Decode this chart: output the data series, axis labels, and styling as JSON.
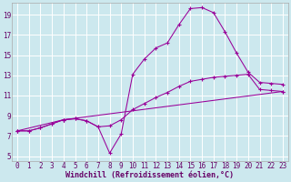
{
  "background_color": "#cce8ee",
  "grid_color": "#ffffff",
  "line_color": "#990099",
  "xlabel": "Windchill (Refroidissement éolien,°C)",
  "xlabel_fontsize": 6.0,
  "tick_fontsize": 5.5,
  "xlim": [
    -0.5,
    23.5
  ],
  "ylim": [
    4.5,
    20.2
  ],
  "yticks": [
    5,
    7,
    9,
    11,
    13,
    15,
    17,
    19
  ],
  "xticks": [
    0,
    1,
    2,
    3,
    4,
    5,
    6,
    7,
    8,
    9,
    10,
    11,
    12,
    13,
    14,
    15,
    16,
    17,
    18,
    19,
    20,
    21,
    22,
    23
  ],
  "series1_x": [
    0,
    1,
    2,
    3,
    4,
    5,
    6,
    7,
    8,
    9,
    10,
    11,
    12,
    13,
    14,
    15,
    16,
    17,
    18,
    19,
    20,
    21,
    22,
    23
  ],
  "series1_y": [
    7.5,
    7.5,
    7.8,
    8.2,
    8.6,
    8.7,
    8.5,
    7.9,
    5.3,
    7.2,
    13.1,
    14.6,
    15.7,
    16.2,
    18.0,
    19.6,
    19.7,
    19.2,
    17.3,
    15.2,
    13.3,
    12.3,
    12.2,
    12.1
  ],
  "series2_x": [
    0,
    1,
    2,
    3,
    4,
    5,
    6,
    7,
    8,
    9,
    10,
    11,
    12,
    13,
    14,
    15,
    16,
    17,
    18,
    19,
    20,
    21,
    22,
    23
  ],
  "series2_y": [
    7.5,
    7.5,
    7.8,
    8.2,
    8.6,
    8.7,
    8.5,
    7.9,
    8.0,
    8.6,
    9.6,
    10.2,
    10.8,
    11.3,
    11.9,
    12.4,
    12.6,
    12.8,
    12.9,
    13.0,
    13.1,
    11.6,
    11.5,
    11.4
  ],
  "series3_x": [
    0,
    4,
    23
  ],
  "series3_y": [
    7.5,
    8.6,
    11.4
  ]
}
